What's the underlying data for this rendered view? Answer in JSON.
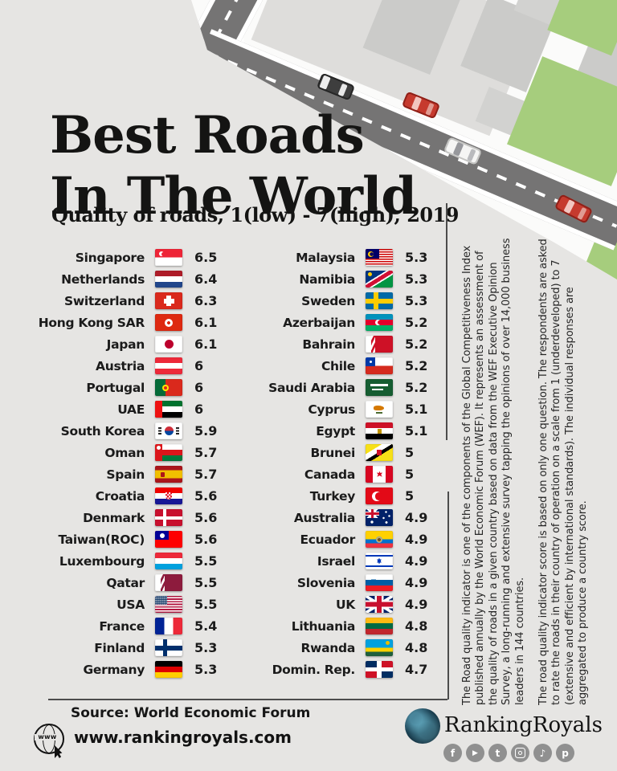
{
  "page_bg": "#e6e5e3",
  "header": {
    "title_line1": "Best Roads",
    "title_line2": "In The World",
    "subtitle": "Quality of roads, 1(low) - 7(high), 2019"
  },
  "ranking": {
    "left": [
      {
        "country": "Singapore",
        "flag": "sg",
        "score": "6.5"
      },
      {
        "country": "Netherlands",
        "flag": "nl",
        "score": "6.4"
      },
      {
        "country": "Switzerland",
        "flag": "ch",
        "score": "6.3"
      },
      {
        "country": "Hong Kong SAR",
        "flag": "hk",
        "score": "6.1"
      },
      {
        "country": "Japan",
        "flag": "jp",
        "score": "6.1"
      },
      {
        "country": "Austria",
        "flag": "at",
        "score": "6"
      },
      {
        "country": "Portugal",
        "flag": "pt",
        "score": "6"
      },
      {
        "country": "UAE",
        "flag": "ae",
        "score": "6"
      },
      {
        "country": "South Korea",
        "flag": "kr",
        "score": "5.9"
      },
      {
        "country": "Oman",
        "flag": "om",
        "score": "5.7"
      },
      {
        "country": "Spain",
        "flag": "es",
        "score": "5.7"
      },
      {
        "country": "Croatia",
        "flag": "hr",
        "score": "5.6"
      },
      {
        "country": "Denmark",
        "flag": "dk",
        "score": "5.6"
      },
      {
        "country": "Taiwan(ROC)",
        "flag": "tw",
        "score": "5.6"
      },
      {
        "country": "Luxembourg",
        "flag": "lu",
        "score": "5.5"
      },
      {
        "country": "Qatar",
        "flag": "qa",
        "score": "5.5"
      },
      {
        "country": "USA",
        "flag": "us",
        "score": "5.5"
      },
      {
        "country": "France",
        "flag": "fr",
        "score": "5.4"
      },
      {
        "country": "Finland",
        "flag": "fi",
        "score": "5.3"
      },
      {
        "country": "Germany",
        "flag": "de",
        "score": "5.3"
      }
    ],
    "right": [
      {
        "country": "Malaysia",
        "flag": "my",
        "score": "5.3"
      },
      {
        "country": "Namibia",
        "flag": "na",
        "score": "5.3"
      },
      {
        "country": "Sweden",
        "flag": "se",
        "score": "5.3"
      },
      {
        "country": "Azerbaijan",
        "flag": "az",
        "score": "5.2"
      },
      {
        "country": "Bahrain",
        "flag": "bh",
        "score": "5.2"
      },
      {
        "country": "Chile",
        "flag": "cl",
        "score": "5.2"
      },
      {
        "country": "Saudi Arabia",
        "flag": "sa",
        "score": "5.2"
      },
      {
        "country": "Cyprus",
        "flag": "cy",
        "score": "5.1"
      },
      {
        "country": "Egypt",
        "flag": "eg",
        "score": "5.1"
      },
      {
        "country": "Brunei",
        "flag": "bn",
        "score": "5"
      },
      {
        "country": "Canada",
        "flag": "ca",
        "score": "5"
      },
      {
        "country": "Turkey",
        "flag": "tr",
        "score": "5"
      },
      {
        "country": "Australia",
        "flag": "au",
        "score": "4.9"
      },
      {
        "country": "Ecuador",
        "flag": "ec",
        "score": "4.9"
      },
      {
        "country": "Israel",
        "flag": "il",
        "score": "4.9"
      },
      {
        "country": "Slovenia",
        "flag": "si",
        "score": "4.9"
      },
      {
        "country": "UK",
        "flag": "gb",
        "score": "4.9"
      },
      {
        "country": "Lithuania",
        "flag": "lt",
        "score": "4.8"
      },
      {
        "country": "Rwanda",
        "flag": "rw",
        "score": "4.8"
      },
      {
        "country": "Domin. Rep.",
        "flag": "do",
        "score": "4.7"
      }
    ]
  },
  "notes": {
    "paragraph1": "The Road quality indicator is one of the components of the Global Competitiveness Index published annually by the World Economic Forum (WEF). It represents an assessment of the quality of roads in a given country based on data from the WEF Executive Opinion Survey, a long-running and extensive survey tapping the opinions of over 14,000 business leaders in 144 countries.",
    "paragraph2": "The road quality indicator score is based on only one question. The respondents are asked to rate the roads in their country of operation on a scale from 1 (underdeveloped) to 7 (extensive and efficient by international standards). The individual responses are aggregated to produce a country score."
  },
  "footer": {
    "source": "Source: World Economic Forum",
    "website": "www.rankingroyals.com",
    "brand": "RankingRoyals",
    "social": [
      "facebook",
      "youtube",
      "twitter",
      "instagram",
      "tiktok",
      "pinterest"
    ]
  },
  "chart_data": {
    "type": "table",
    "title": "Best Roads In The World",
    "subtitle": "Quality of roads, 1(low) - 7(high), 2019",
    "value_scale": [
      1,
      7
    ],
    "year": 2019,
    "source": "World Economic Forum",
    "categories": [
      "Singapore",
      "Netherlands",
      "Switzerland",
      "Hong Kong SAR",
      "Japan",
      "Austria",
      "Portugal",
      "UAE",
      "South Korea",
      "Oman",
      "Spain",
      "Croatia",
      "Denmark",
      "Taiwan(ROC)",
      "Luxembourg",
      "Qatar",
      "USA",
      "France",
      "Finland",
      "Germany",
      "Malaysia",
      "Namibia",
      "Sweden",
      "Azerbaijan",
      "Bahrain",
      "Chile",
      "Saudi Arabia",
      "Cyprus",
      "Egypt",
      "Brunei",
      "Canada",
      "Turkey",
      "Australia",
      "Ecuador",
      "Israel",
      "Slovenia",
      "UK",
      "Lithuania",
      "Rwanda",
      "Domin. Rep."
    ],
    "values": [
      6.5,
      6.4,
      6.3,
      6.1,
      6.1,
      6,
      6,
      6,
      5.9,
      5.7,
      5.7,
      5.6,
      5.6,
      5.6,
      5.5,
      5.5,
      5.5,
      5.4,
      5.3,
      5.3,
      5.3,
      5.3,
      5.3,
      5.2,
      5.2,
      5.2,
      5.2,
      5.1,
      5.1,
      5,
      5,
      5,
      4.9,
      4.9,
      4.9,
      4.9,
      4.9,
      4.8,
      4.8,
      4.7
    ]
  }
}
